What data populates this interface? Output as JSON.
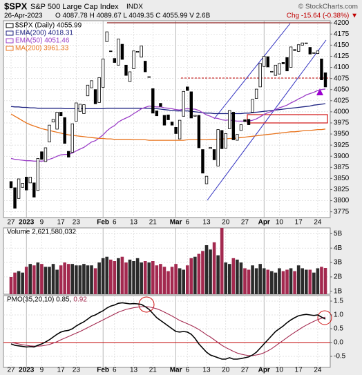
{
  "chart_data": [
    {
      "type": "candlestick",
      "title": "$SPX",
      "subtitle": "S&P 500 Large Cap Index",
      "exchange": "INDX",
      "source": "© StockCharts.com",
      "date": "26-Apr-2023",
      "ohlc": "O 4087.78 H 4089.67 L 4049.35 C 4055.99 V 2.6B",
      "change": "Chg -15.64 (-0.38%) ▼",
      "name": "$SPX (Daily) 4055.99",
      "color": "#000000",
      "categories": [
        "27",
        null,
        null,
        null,
        "2023",
        null,
        null,
        null,
        "9",
        null,
        null,
        null,
        null,
        "17",
        null,
        null,
        null,
        "23",
        null,
        null,
        null,
        null,
        null,
        null,
        "Feb",
        null,
        null,
        "6",
        null,
        null,
        null,
        null,
        "13",
        null,
        null,
        null,
        null,
        "21",
        null,
        null,
        null,
        null,
        null,
        "Mar",
        null,
        null,
        "6",
        null,
        null,
        null,
        null,
        "13",
        null,
        null,
        null,
        null,
        "20",
        null,
        null,
        null,
        null,
        "27",
        null,
        null,
        null,
        null,
        "Apr",
        null,
        null,
        null,
        "10",
        null,
        null,
        null,
        null,
        "17",
        null,
        null,
        null,
        null,
        "24",
        null,
        null
      ],
      "open": [
        3843,
        3829,
        3805,
        3830,
        3853,
        3840,
        3840,
        3823,
        3910,
        3888,
        3932,
        3977,
        3961,
        3999,
        3987,
        3911,
        3909,
        3979,
        4001,
        3996,
        4036,
        4054,
        4050,
        4021,
        4055,
        4158,
        4137,
        4120,
        4105,
        4152,
        4105,
        4068,
        4097,
        4134,
        4123,
        4114,
        4078,
        4052,
        4002,
        4019,
        3992,
        3993,
        3977,
        3965,
        3939,
        3990,
        4056,
        4045,
        3990,
        3992,
        3915,
        3838,
        3917,
        3915,
        3878,
        3958,
        3918,
        3962,
        3999,
        3936,
        3958,
        3982,
        3983,
        3999,
        4030,
        4056,
        4102,
        4124,
        4090,
        4082,
        4085,
        4111,
        4122,
        4100,
        4140,
        4136,
        4150,
        4155,
        4145,
        4133,
        4131,
        4119,
        4087.78
      ],
      "close": [
        3829,
        3783,
        3849,
        3839,
        3824,
        3853,
        3808,
        3895,
        3893,
        3919,
        3970,
        3983,
        3999,
        3991,
        3929,
        3898,
        3973,
        4020,
        4017,
        4016,
        4060,
        4070,
        4018,
        4077,
        4119,
        4180,
        4136,
        4111,
        4164,
        4118,
        4082,
        4090,
        4137,
        4136,
        4148,
        4090,
        4079,
        3997,
        3991,
        4012,
        3970,
        3982,
        3970,
        3951,
        3981,
        4046,
        4048,
        3986,
        3992,
        3919,
        3862,
        3855,
        3920,
        3892,
        3960,
        3917,
        3951,
        4003,
        3937,
        3949,
        3971,
        3978,
        3971,
        4028,
        4051,
        4109,
        4125,
        4101,
        4091,
        4105,
        4109,
        4108,
        4092,
        4146,
        4138,
        4151,
        4155,
        4155,
        4130,
        4133,
        4137,
        4072,
        4055.99
      ],
      "overlays": [
        {
          "name": "EMA(200) 4018.31",
          "color": "#1c2180",
          "values": [
            4012,
            4011,
            4011,
            4010,
            4010,
            4009,
            4009,
            4008,
            4008,
            4008,
            4008,
            4008,
            4008,
            4008,
            4007,
            4007,
            4007,
            4007,
            4007,
            4007,
            4007,
            4007,
            4007,
            4007,
            4007,
            4008,
            4008,
            4008,
            4008,
            4008,
            4008,
            4008,
            4008,
            4008,
            4008,
            4008,
            4008,
            4007,
            4007,
            4006,
            4005,
            4004,
            4003,
            4002,
            4002,
            4002,
            4002,
            4001,
            4000,
            3999,
            3998,
            3997,
            3997,
            3996,
            3996,
            3996,
            3996,
            3996,
            3996,
            3996,
            3996,
            3997,
            3997,
            3998,
            3999,
            4000,
            4001,
            4002,
            4003,
            4004,
            4005,
            4006,
            4007,
            4008,
            4009,
            4010,
            4011,
            4012,
            4013,
            4015,
            4016,
            4017,
            4018.31
          ]
        },
        {
          "name": "EMA(50) 4051.46",
          "color": "#9b3fc7",
          "values": [
            3895,
            3893,
            3892,
            3891,
            3890,
            3890,
            3889,
            3889,
            3889,
            3890,
            3893,
            3896,
            3900,
            3903,
            3904,
            3904,
            3907,
            3912,
            3916,
            3920,
            3926,
            3932,
            3935,
            3941,
            3948,
            3957,
            3964,
            3969,
            3977,
            3982,
            3986,
            3990,
            3996,
            4001,
            4007,
            4010,
            4013,
            4012,
            4011,
            4011,
            4009,
            4008,
            4007,
            4005,
            4004,
            4006,
            4007,
            4006,
            4006,
            4003,
            3998,
            3993,
            3990,
            3986,
            3985,
            3982,
            3981,
            3982,
            3980,
            3979,
            3979,
            3979,
            3979,
            3981,
            3984,
            3989,
            3994,
            3998,
            4001,
            4005,
            4009,
            4012,
            4015,
            4020,
            4024,
            4029,
            4033,
            4038,
            4041,
            4044,
            4048,
            4050,
            4051.46
          ]
        },
        {
          "name": "MA(200) 3961.33",
          "color": "#e8731c",
          "values": [
            3995,
            3990,
            3985,
            3980,
            3975,
            3971,
            3968,
            3965,
            3962,
            3960,
            3958,
            3956,
            3954,
            3952,
            3950,
            3948,
            3947,
            3946,
            3945,
            3944,
            3943,
            3942,
            3941,
            3940,
            3940,
            3939,
            3939,
            3938,
            3938,
            3938,
            3938,
            3938,
            3937,
            3937,
            3937,
            3937,
            3936,
            3936,
            3936,
            3936,
            3936,
            3936,
            3936,
            3936,
            3936,
            3936,
            3937,
            3937,
            3937,
            3937,
            3937,
            3937,
            3938,
            3938,
            3938,
            3939,
            3939,
            3940,
            3940,
            3941,
            3942,
            3943,
            3944,
            3945,
            3946,
            3947,
            3948,
            3949,
            3950,
            3951,
            3952,
            3953,
            3954,
            3955,
            3955,
            3956,
            3957,
            3958,
            3958,
            3959,
            3960,
            3960,
            3961.33
          ]
        }
      ],
      "ylim": [
        3762,
        4205
      ],
      "yticks": [
        3775,
        3800,
        3825,
        3850,
        3875,
        3900,
        3925,
        3950,
        3975,
        4000,
        4025,
        4050,
        4075,
        4100,
        4125,
        4150,
        4175,
        4200
      ],
      "grid": true
    },
    {
      "type": "bar",
      "title": "Volume 2,621,580,032",
      "up_color": "#2b2b2b",
      "down_color": "#a3294f",
      "values": [
        2000000000.0,
        2300000000.0,
        2400000000.0,
        2300000000.0,
        2700000000.0,
        2900000000.0,
        2800000000.0,
        3000000000.0,
        2900000000.0,
        2700000000.0,
        2700000000.0,
        2900000000.0,
        2500000000.0,
        2800000000.0,
        3000000000.0,
        2900000000.0,
        2900000000.0,
        2800000000.0,
        2800000000.0,
        2900000000.0,
        2800000000.0,
        2800000000.0,
        2600000000.0,
        3000000000.0,
        3300000000.0,
        3400000000.0,
        3200000000.0,
        3100000000.0,
        3300000000.0,
        3400000000.0,
        3000000000.0,
        3200000000.0,
        3100000000.0,
        3300000000.0,
        3000000000.0,
        3100000000.0,
        3000000000.0,
        3100000000.0,
        2800000000.0,
        2900000000.0,
        2700000000.0,
        2400000000.0,
        2700000000.0,
        2900000000.0,
        2600000000.0,
        2500000000.0,
        2800000000.0,
        3300000000.0,
        3400000000.0,
        3600000000.0,
        3800000000.0,
        4200000000.0,
        3900000000.0,
        4400000000.0,
        3500000000.0,
        5400000000.0,
        3000000000.0,
        2900000000.0,
        3300000000.0,
        3200000000.0,
        3000000000.0,
        2600000000.0,
        2500000000.0,
        2800000000.0,
        2600000000.0,
        2900000000.0,
        2600000000.0,
        2500000000.0,
        2400000000.0,
        2300000000.0,
        2600000000.0,
        2400000000.0,
        2500000000.0,
        2600000000.0,
        2400000000.0,
        2800000000.0,
        2600000000.0,
        2500000000.0,
        2500000000.0,
        2300000000.0,
        2600000000.0,
        2700000000.0,
        2621580032
      ],
      "ylim": [
        800000000.0,
        5400000000.0
      ],
      "yticks": [
        {
          "value": 1000000000.0,
          "label": "1B"
        },
        {
          "value": 2000000000.0,
          "label": "2B"
        },
        {
          "value": 3000000000.0,
          "label": "3B"
        },
        {
          "value": 4000000000.0,
          "label": "4B"
        },
        {
          "value": 5000000000.0,
          "label": "5B"
        }
      ],
      "grid": true
    },
    {
      "type": "line",
      "zero_line": true,
      "series": [
        {
          "name": "PMO(35,20,10) 0.85,",
          "color": "#000000",
          "values": [
            -0.05,
            -0.1,
            -0.12,
            -0.14,
            -0.16,
            -0.15,
            -0.16,
            -0.1,
            -0.05,
            0.02,
            0.1,
            0.2,
            0.3,
            0.38,
            0.42,
            0.44,
            0.5,
            0.6,
            0.68,
            0.75,
            0.85,
            0.95,
            1.0,
            1.08,
            1.15,
            1.25,
            1.32,
            1.36,
            1.42,
            1.44,
            1.42,
            1.4,
            1.41,
            1.4,
            1.38,
            1.3,
            1.2,
            1.05,
            0.9,
            0.8,
            0.7,
            0.6,
            0.5,
            0.4,
            0.38,
            0.4,
            0.38,
            0.3,
            0.15,
            -0.05,
            -0.2,
            -0.35,
            -0.45,
            -0.5,
            -0.55,
            -0.6,
            -0.6,
            -0.55,
            -0.6,
            -0.6,
            -0.58,
            -0.55,
            -0.52,
            -0.45,
            -0.35,
            -0.2,
            -0.05,
            0.1,
            0.25,
            0.4,
            0.5,
            0.6,
            0.72,
            0.82,
            0.9,
            0.97,
            1.0,
            1.02,
            1.0,
            0.98,
            1.0,
            0.92,
            0.85
          ]
        },
        {
          "name": "0.92",
          "color": "#a3294f",
          "values": [
            0.0,
            -0.02,
            -0.05,
            -0.08,
            -0.1,
            -0.12,
            -0.13,
            -0.13,
            -0.12,
            -0.1,
            -0.07,
            -0.02,
            0.03,
            0.1,
            0.16,
            0.22,
            0.28,
            0.34,
            0.4,
            0.47,
            0.54,
            0.61,
            0.68,
            0.75,
            0.82,
            0.89,
            0.96,
            1.03,
            1.1,
            1.15,
            1.2,
            1.23,
            1.26,
            1.28,
            1.3,
            1.3,
            1.29,
            1.26,
            1.22,
            1.17,
            1.1,
            1.03,
            0.96,
            0.88,
            0.8,
            0.74,
            0.68,
            0.62,
            0.55,
            0.47,
            0.38,
            0.28,
            0.2,
            0.1,
            0.0,
            -0.1,
            -0.18,
            -0.25,
            -0.32,
            -0.38,
            -0.42,
            -0.45,
            -0.47,
            -0.47,
            -0.45,
            -0.42,
            -0.37,
            -0.3,
            -0.22,
            -0.12,
            -0.02,
            0.08,
            0.18,
            0.28,
            0.37,
            0.46,
            0.55,
            0.63,
            0.7,
            0.77,
            0.83,
            0.88,
            0.92
          ]
        }
      ],
      "ylim": [
        -0.9,
        1.7
      ],
      "yticks": [
        1.5,
        {
          "value": 1,
          "label": "1.0"
        },
        0.5,
        {
          "value": 0,
          "label": "0.0"
        },
        -0.5
      ],
      "grid": true
    }
  ]
}
